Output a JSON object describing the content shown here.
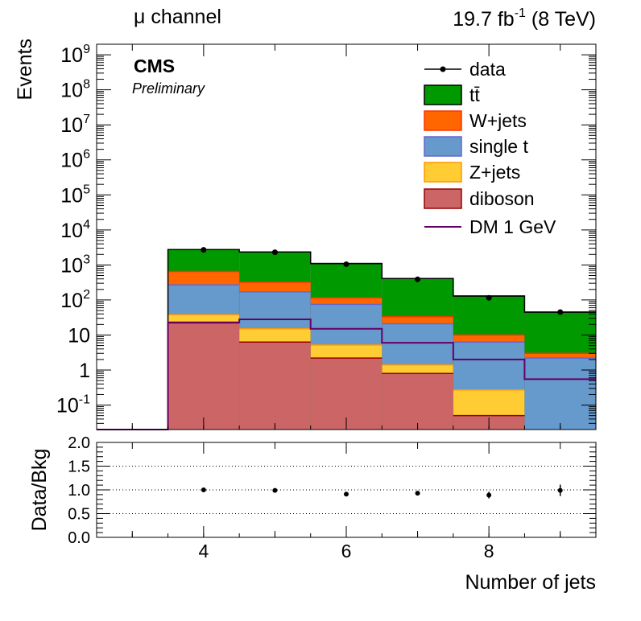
{
  "header": {
    "channel": "μ channel",
    "lumi_value": "19.7 fb",
    "lumi_exp": "-1",
    "lumi_energy": " (8 TeV)"
  },
  "labels": {
    "experiment": "CMS",
    "status": "Preliminary"
  },
  "chart_data": [
    {
      "type": "bar",
      "stacked": true,
      "x_bins": [
        [
          2.5,
          3.5
        ],
        [
          3.5,
          4.5
        ],
        [
          4.5,
          5.5
        ],
        [
          5.5,
          6.5
        ],
        [
          6.5,
          7.5
        ],
        [
          7.5,
          8.5
        ],
        [
          8.5,
          9.5
        ]
      ],
      "xlim": [
        2.5,
        9.5
      ],
      "xlabel": "Number of jets",
      "ylabel": "Events",
      "yscale": "log",
      "ylim": [
        0.02,
        2000000000
      ],
      "y_ticks": [
        {
          "value": 0.1,
          "base": "10",
          "exp": "-1"
        },
        {
          "value": 1,
          "base": "1",
          "exp": ""
        },
        {
          "value": 10,
          "base": "10",
          "exp": ""
        },
        {
          "value": 100,
          "base": "10",
          "exp": "2"
        },
        {
          "value": 1000,
          "base": "10",
          "exp": "3"
        },
        {
          "value": 10000,
          "base": "10",
          "exp": "4"
        },
        {
          "value": 100000,
          "base": "10",
          "exp": "5"
        },
        {
          "value": 1000000,
          "base": "10",
          "exp": "6"
        },
        {
          "value": 10000000,
          "base": "10",
          "exp": "7"
        },
        {
          "value": 100000000,
          "base": "10",
          "exp": "8"
        },
        {
          "value": 1000000000,
          "base": "10",
          "exp": "9"
        }
      ],
      "x_ticks": [
        4,
        6,
        8
      ],
      "legend_position": "top-right",
      "stack_order_bottom_to_top": [
        "diboson",
        "Z+jets",
        "single t",
        "W+jets",
        "tt̄"
      ],
      "series": [
        {
          "name": "tt̄",
          "color": "#009900",
          "edge": "#000000",
          "stack_top": [
            0.02,
            2750,
            2350,
            1100,
            410,
            130,
            45
          ]
        },
        {
          "name": "W+jets",
          "color": "#ff6600",
          "edge": "#ff3300",
          "stack_top": [
            0.02,
            650,
            320,
            115,
            33,
            10,
            3
          ]
        },
        {
          "name": "single t",
          "color": "#6699cc",
          "edge": "#6666cc",
          "stack_top": [
            0.02,
            270,
            170,
            75,
            21,
            6.3,
            2.2
          ]
        },
        {
          "name": "Z+jets",
          "color": "#ffcc33",
          "edge": "#ff9900",
          "stack_top": [
            0.02,
            38,
            15,
            5.2,
            1.4,
            0.27,
            0.02
          ]
        },
        {
          "name": "diboson",
          "color": "#cc6666",
          "edge": "#990000",
          "stack_top": [
            0.02,
            22,
            6.3,
            2.2,
            0.8,
            0.05,
            0.02
          ]
        }
      ],
      "overlay": {
        "name": "DM 1 GeV",
        "color": "#660066",
        "values": [
          0.02,
          23,
          28,
          15,
          6,
          2,
          0.55
        ]
      },
      "data": {
        "name": "data",
        "x": [
          4,
          5,
          6,
          7,
          8,
          9
        ],
        "y": [
          2700,
          2300,
          1050,
          390,
          115,
          45
        ]
      }
    },
    {
      "type": "scatter",
      "xlabel": "Number of jets",
      "ylabel": "Data/Bkg",
      "xlim": [
        2.5,
        9.5
      ],
      "ylim": [
        0,
        2
      ],
      "y_ticks": [
        "0.0",
        "0.5",
        "1.0",
        "1.5",
        "2.0"
      ],
      "gridlines_y": [
        0.5,
        1.0,
        1.5
      ],
      "x": [
        4,
        5,
        6,
        7,
        8,
        9
      ],
      "y": [
        1.0,
        0.99,
        0.91,
        0.93,
        0.89,
        0.99
      ],
      "yerr": [
        0.02,
        0.02,
        0.03,
        0.04,
        0.07,
        0.12
      ]
    }
  ]
}
